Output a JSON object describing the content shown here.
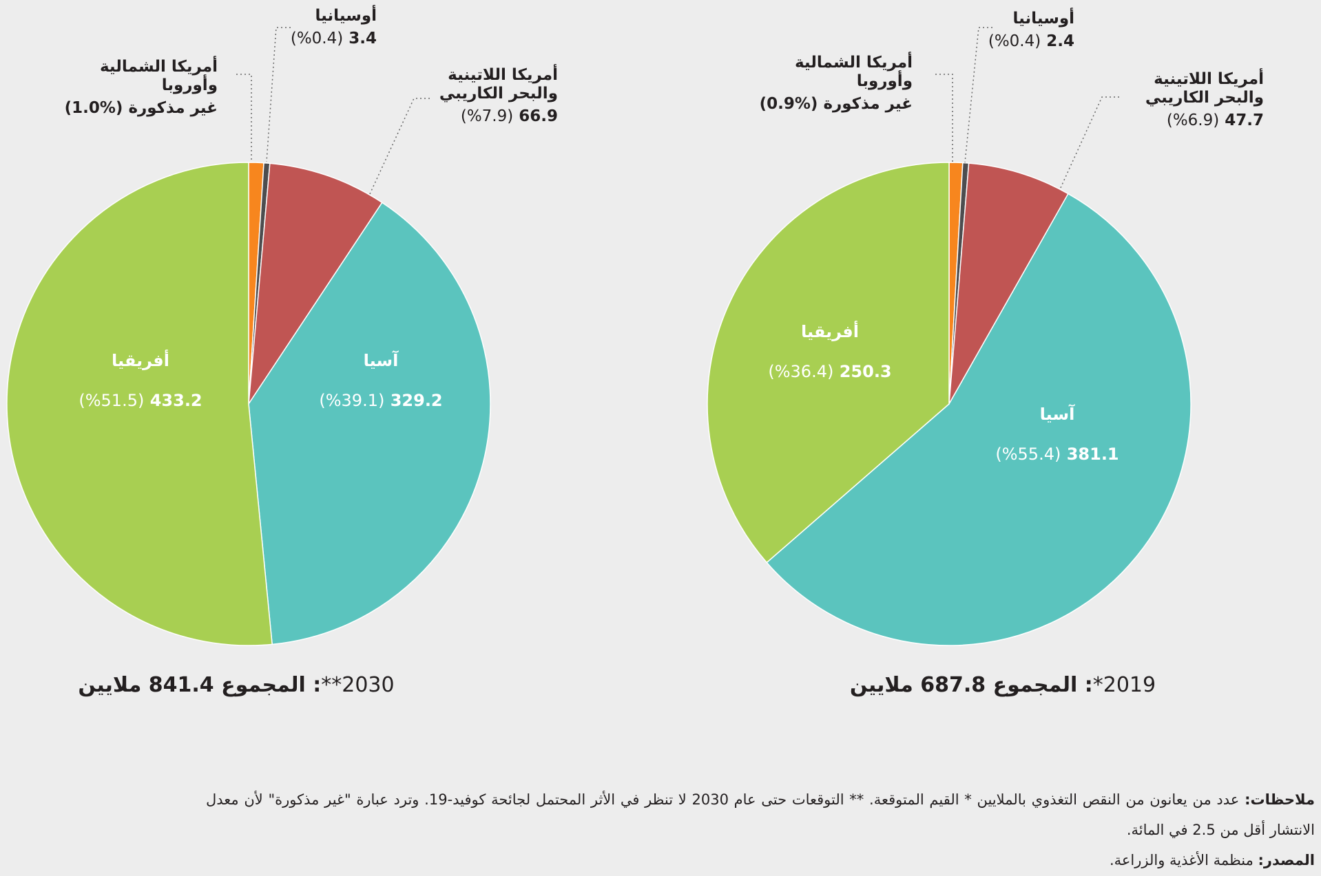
{
  "chart_data": [
    {
      "type": "pie",
      "title": "2030**",
      "caption_suffix": ": المجموع 841.4 ملايين",
      "unit": "millions",
      "slices": [
        {
          "name": "أمريكا الشمالية وأوروبا",
          "value_text": "غير مذكورة",
          "percent": 1.0,
          "pct_text": "(%1.0)",
          "color": "#f7861e"
        },
        {
          "name": "أوسيانيا",
          "value": 3.4,
          "value_text": "3.4",
          "percent": 0.4,
          "pct_text": "(%0.4)",
          "color": "#4d4d4f"
        },
        {
          "name": "أمريكا اللاتينية والبحر الكاريبي",
          "value": 66.9,
          "value_text": "66.9",
          "percent": 7.9,
          "pct_text": "(%7.9)",
          "color": "#c05553"
        },
        {
          "name": "آسيا",
          "value": 329.2,
          "value_text": "329.2",
          "percent": 39.1,
          "pct_text": "(%39.1)",
          "color": "#5bc4be"
        },
        {
          "name": "أفريقيا",
          "value": 433.2,
          "value_text": "433.2",
          "percent": 51.5,
          "pct_text": "(%51.5)",
          "color": "#a8cf52"
        }
      ]
    },
    {
      "type": "pie",
      "title": "2019*",
      "caption_suffix": ": المجموع 687.8 ملايين",
      "unit": "millions",
      "slices": [
        {
          "name": "أمريكا الشمالية وأوروبا",
          "value_text": "غير مذكورة",
          "percent": 0.9,
          "pct_text": "(%0.9)",
          "color": "#f7861e"
        },
        {
          "name": "أوسيانيا",
          "value": 2.4,
          "value_text": "2.4",
          "percent": 0.4,
          "pct_text": "(%0.4)",
          "color": "#4d4d4f"
        },
        {
          "name": "أمريكا اللاتينية والبحر الكاريبي",
          "value": 47.7,
          "value_text": "47.7",
          "percent": 6.9,
          "pct_text": "(%6.9)",
          "color": "#c05553"
        },
        {
          "name": "آسيا",
          "value": 381.1,
          "value_text": "381.1",
          "percent": 55.4,
          "pct_text": "(%55.4)",
          "color": "#5bc4be"
        },
        {
          "name": "أفريقيا",
          "value": 250.3,
          "value_text": "250.3",
          "percent": 36.4,
          "pct_text": "(%36.4)",
          "color": "#a8cf52"
        }
      ]
    }
  ],
  "labels": {
    "na_line1": "أمريكا الشمالية",
    "na_line2": "وأوروبا",
    "latam_line1": "أمريكا اللاتينية",
    "latam_line2": "والبحر الكاريبي"
  },
  "notes": {
    "notes_label": "ملاحظات:",
    "notes_text": " عدد من يعانون من النقص التغذوي بالملايين * القيم المتوقعة. ** التوقعات حتى عام 2030 لا تنظر في الأثر المحتمل لجائحة كوفيد-19. وترد عبارة \"غير مذكورة\" لأن معدل الانتشار أقل من 2.5 في المائة.",
    "source_label": "المصدر:",
    "source_text": " منظمة الأغذية والزراعة."
  }
}
